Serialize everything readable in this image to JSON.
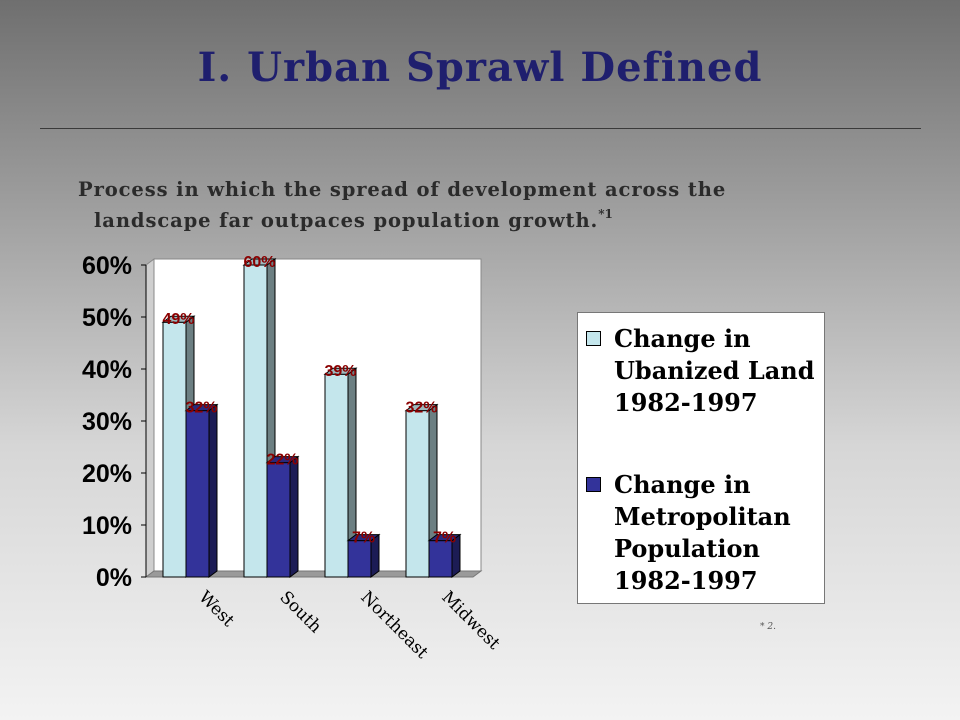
{
  "slide": {
    "title": "I.  Urban Sprawl Defined",
    "subtitle_line1": "Process in which the spread of development across the",
    "subtitle_line2": "landscape far outpaces population growth.",
    "subtitle_ref": "*1",
    "footnote": "* 2."
  },
  "colors": {
    "series1": "#c4e6ec",
    "series2": "#33339a",
    "data_label": "#8b0000"
  },
  "chart_data": {
    "type": "bar",
    "categories": [
      "West",
      "South",
      "Northeast",
      "Midwest"
    ],
    "series": [
      {
        "name": "Change in Ubanized Land 1982-1997",
        "values": [
          49,
          60,
          39,
          32
        ],
        "labels": [
          "49%",
          "60%",
          "39%",
          "32%"
        ]
      },
      {
        "name": "Change in Metropolitan Population 1982-1997",
        "values": [
          32,
          22,
          7,
          7
        ],
        "labels": [
          "32%",
          "22%",
          "7%",
          "7%"
        ]
      }
    ],
    "yticks": [
      "0%",
      "10%",
      "20%",
      "30%",
      "40%",
      "50%",
      "60%"
    ],
    "ylim": [
      0,
      60
    ],
    "grid": false,
    "legend_position": "right",
    "style": "3d-clustered-column"
  }
}
